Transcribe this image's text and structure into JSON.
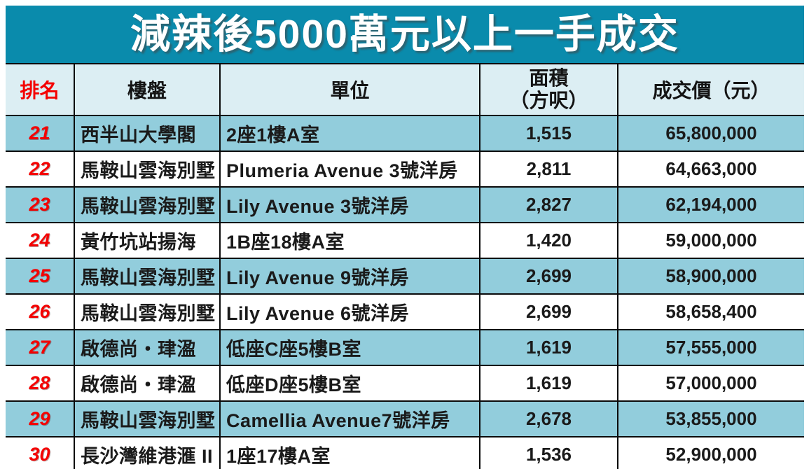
{
  "title": "減辣後5000萬元以上一手成交",
  "colors": {
    "title_bg": "#0a8bac",
    "title_text": "#ffffff",
    "header_bg": "#dceef3",
    "row_stripe": "#92cddc",
    "row_plain": "#ffffff",
    "rank_red": "#f40000",
    "grid_border": "#0b0b0b"
  },
  "chart_data": {
    "type": "table",
    "title": "減辣後5000萬元以上一手成交",
    "columns": [
      "排名",
      "樓盤",
      "單位",
      "面積（方呎）",
      "成交價（元）"
    ],
    "rows": [
      [
        21,
        "西半山大學閣",
        "2座1樓A室",
        1515,
        65800000
      ],
      [
        22,
        "馬鞍山雲海別墅",
        "Plumeria Avenue 3號洋房",
        2811,
        64663000
      ],
      [
        23,
        "馬鞍山雲海別墅",
        "Lily Avenue 3號洋房",
        2827,
        62194000
      ],
      [
        24,
        "黃竹坑站揚海",
        "1B座18樓A室",
        1420,
        59000000
      ],
      [
        25,
        "馬鞍山雲海別墅",
        "Lily Avenue 9號洋房",
        2699,
        58900000
      ],
      [
        26,
        "馬鞍山雲海別墅",
        "Lily Avenue 6號洋房",
        2699,
        58658400
      ],
      [
        27,
        "啟德尚・珒溋",
        "低座C座5樓B室",
        1619,
        57555000
      ],
      [
        28,
        "啟德尚・珒溋",
        "低座D座5樓B室",
        1619,
        57000000
      ],
      [
        29,
        "馬鞍山雲海別墅",
        "Camellia Avenue7號洋房",
        2678,
        53855000
      ],
      [
        30,
        "長沙灣維港滙 II",
        "1座17樓A室",
        1536,
        52900000
      ]
    ]
  },
  "table": {
    "headers": {
      "rank": "排名",
      "estate": "樓盤",
      "unit": "單位",
      "area": "面積\n（方呎）",
      "price": "成交價（元）"
    },
    "rows": [
      {
        "rank": "21",
        "estate": "西半山大學閣",
        "unit": "2座1樓A室",
        "area": "1,515",
        "price": "65,800,000"
      },
      {
        "rank": "22",
        "estate": "馬鞍山雲海別墅",
        "unit": "Plumeria Avenue 3號洋房",
        "area": "2,811",
        "price": "64,663,000"
      },
      {
        "rank": "23",
        "estate": "馬鞍山雲海別墅",
        "unit": "Lily Avenue 3號洋房",
        "area": "2,827",
        "price": "62,194,000"
      },
      {
        "rank": "24",
        "estate": "黃竹坑站揚海",
        "unit": "1B座18樓A室",
        "area": "1,420",
        "price": "59,000,000"
      },
      {
        "rank": "25",
        "estate": "馬鞍山雲海別墅",
        "unit": "Lily Avenue 9號洋房",
        "area": "2,699",
        "price": "58,900,000"
      },
      {
        "rank": "26",
        "estate": "馬鞍山雲海別墅",
        "unit": "Lily Avenue 6號洋房",
        "area": "2,699",
        "price": "58,658,400"
      },
      {
        "rank": "27",
        "estate": "啟德尚・珒溋",
        "unit": "低座C座5樓B室",
        "area": "1,619",
        "price": "57,555,000"
      },
      {
        "rank": "28",
        "estate": "啟德尚・珒溋",
        "unit": "低座D座5樓B室",
        "area": "1,619",
        "price": "57,000,000"
      },
      {
        "rank": "29",
        "estate": "馬鞍山雲海別墅",
        "unit": "Camellia Avenue7號洋房",
        "area": "2,678",
        "price": "53,855,000"
      },
      {
        "rank": "30",
        "estate": "長沙灣維港滙 II",
        "unit": "1座17樓A室",
        "area": "1,536",
        "price": "52,900,000"
      }
    ]
  }
}
